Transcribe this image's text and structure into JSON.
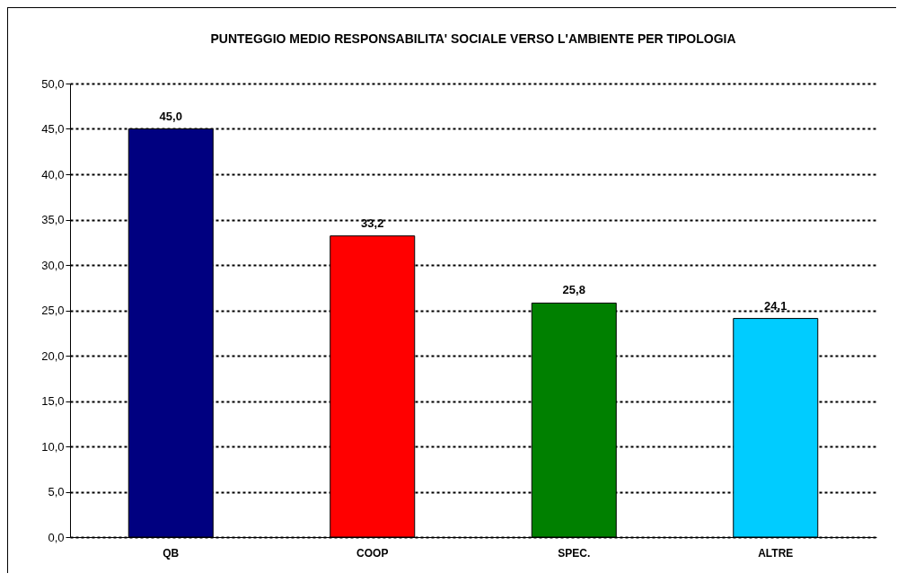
{
  "chart_data": {
    "type": "bar",
    "title": "PUNTEGGIO MEDIO RESPONSABILITA' SOCIALE VERSO L'AMBIENTE PER TIPOLOGIA",
    "categories": [
      "QB",
      "COOP",
      "SPEC.",
      "ALTRE"
    ],
    "values": [
      45.0,
      33.2,
      25.8,
      24.1
    ],
    "value_labels": [
      "45,0",
      "33,2",
      "25,8",
      "24,1"
    ],
    "colors": [
      "#000080",
      "#ff0000",
      "#008000",
      "#00ccff"
    ],
    "ylim": [
      0,
      50
    ],
    "yticks": [
      {
        "value": 0,
        "label": "0,0"
      },
      {
        "value": 5,
        "label": "5,0"
      },
      {
        "value": 10,
        "label": "10,0"
      },
      {
        "value": 15,
        "label": "15,0"
      },
      {
        "value": 20,
        "label": "20,0"
      },
      {
        "value": 25,
        "label": "25,0"
      },
      {
        "value": 30,
        "label": "30,0"
      },
      {
        "value": 35,
        "label": "35,0"
      },
      {
        "value": 40,
        "label": "40,0"
      },
      {
        "value": 45,
        "label": "45,0"
      },
      {
        "value": 50,
        "label": "50,0"
      }
    ],
    "grid": "y"
  }
}
